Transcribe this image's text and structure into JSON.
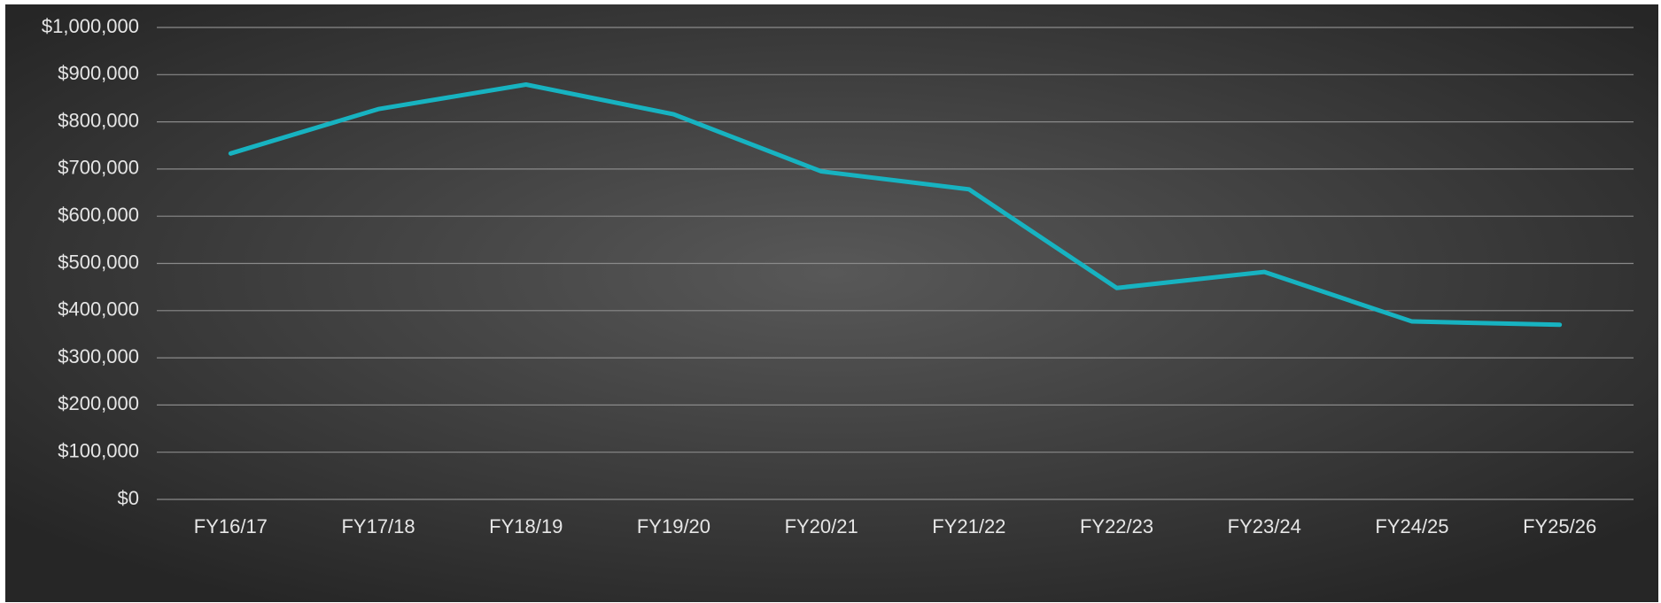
{
  "chart_data": {
    "type": "line",
    "categories": [
      "FY16/17",
      "FY17/18",
      "FY18/19",
      "FY19/20",
      "FY20/21",
      "FY21/22",
      "FY22/23",
      "FY23/24",
      "FY24/25",
      "FY25/26"
    ],
    "series": [
      {
        "color": "#17b3c1",
        "values": [
          733000,
          827000,
          879000,
          816000,
          695000,
          657000,
          448000,
          482000,
          377000,
          370000
        ]
      }
    ],
    "ylim": [
      0,
      1000000
    ],
    "yticks": [
      {
        "value": 0,
        "label": "$0"
      },
      {
        "value": 100000,
        "label": "$100,000"
      },
      {
        "value": 200000,
        "label": "$200,000"
      },
      {
        "value": 300000,
        "label": "$300,000"
      },
      {
        "value": 400000,
        "label": "$400,000"
      },
      {
        "value": 500000,
        "label": "$500,000"
      },
      {
        "value": 600000,
        "label": "$600,000"
      },
      {
        "value": 700000,
        "label": "$700,000"
      },
      {
        "value": 800000,
        "label": "$800,000"
      },
      {
        "value": 900000,
        "label": "$900,000"
      },
      {
        "value": 1000000,
        "label": "$1,000,000"
      }
    ],
    "grid": true
  }
}
